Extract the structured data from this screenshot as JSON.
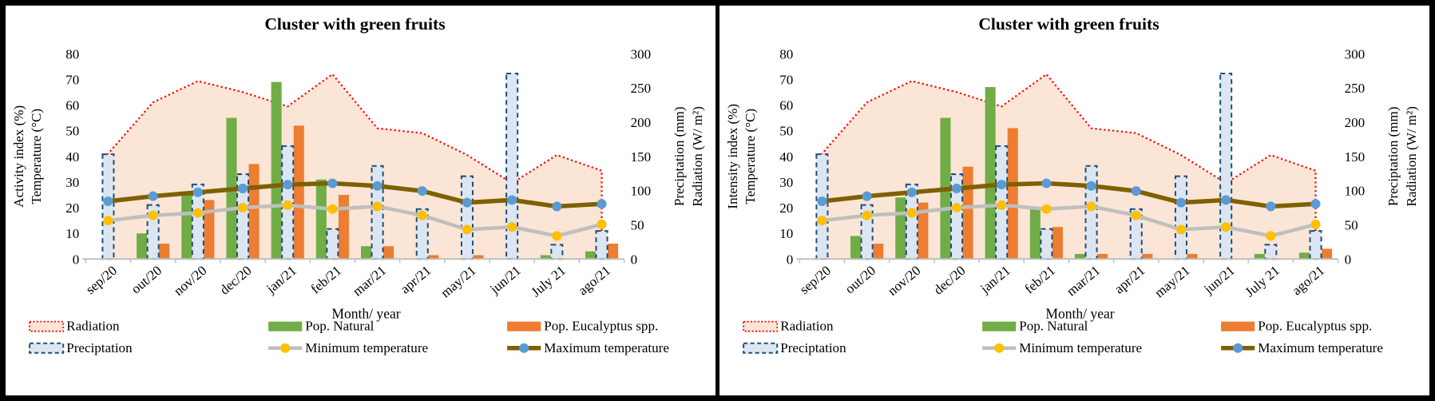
{
  "figure": {
    "background": "#FFFFFF",
    "frame_color": "#000000"
  },
  "axes": {
    "y_left_ticks": [
      80,
      70,
      60,
      50,
      40,
      30,
      20,
      10,
      0
    ],
    "y_right_ticks": [
      300,
      250,
      200,
      150,
      100,
      50,
      0
    ]
  },
  "chart_data": [
    {
      "type": "combo-area-bar-line",
      "title": "Cluster with green fruits",
      "xlabel": "Month/ year",
      "ylabel_left": [
        "Activity index (%)",
        "Temperature (°C)"
      ],
      "ylabel_right": [
        "Preciptation (mm)",
        "Radiation (W/ m²)"
      ],
      "ylim_left": [
        0,
        80
      ],
      "ylim_right": [
        0,
        300
      ],
      "grid": false,
      "legend_position": "bottom",
      "categories": [
        "sep/20",
        "out/20",
        "nov/20",
        "dec/20",
        "jan/21",
        "feb/21",
        "mar/21",
        "apr/21",
        "may/21",
        "jun/21",
        "July 21",
        "ago/21"
      ],
      "series": [
        {
          "name": "Radiation",
          "type": "area",
          "axis": "right",
          "unit": "W/m²",
          "fill": "#FBE5D6",
          "stroke": "#FF0000",
          "values": [
            154,
            229,
            260,
            244,
            223,
            270,
            191,
            184,
            152,
            111,
            152,
            129
          ]
        },
        {
          "name": "Preciptation",
          "type": "bar",
          "axis": "right",
          "unit": "mm",
          "fill": "#DCE6F2",
          "stroke": "#1F4E79",
          "values": [
            153,
            79,
            109,
            124,
            165,
            44,
            136,
            73,
            121,
            271,
            21,
            41
          ]
        },
        {
          "name": "Pop. Natural",
          "type": "bar",
          "axis": "left",
          "unit": "%",
          "fill": "#70AD47",
          "values": [
            0,
            10,
            25,
            55,
            69,
            31,
            5,
            0,
            0,
            0,
            1.5,
            3
          ]
        },
        {
          "name": "Pop. Eucalyptus spp.",
          "type": "bar",
          "axis": "left",
          "unit": "%",
          "fill": "#ED7D31",
          "values": [
            0,
            6,
            23,
            37,
            52,
            25,
            5,
            1.5,
            1.5,
            0,
            0,
            6
          ]
        },
        {
          "name": "Minimum temperature",
          "type": "line",
          "axis": "left",
          "unit": "°C",
          "stroke": "#BFBFBF",
          "marker": "#FFC000",
          "values": [
            15,
            17,
            18,
            20,
            21,
            19.5,
            20.5,
            17,
            11.5,
            12.5,
            9,
            13.5
          ]
        },
        {
          "name": "Maximum temperature",
          "type": "line",
          "axis": "left",
          "unit": "°C",
          "stroke": "#7F6000",
          "marker": "#5B9BD5",
          "values": [
            22.5,
            24.5,
            26,
            27.5,
            29,
            29.5,
            28.5,
            26.5,
            22,
            23,
            20.5,
            21.5
          ]
        }
      ]
    },
    {
      "type": "combo-area-bar-line",
      "title": "Cluster with green fruits",
      "xlabel": "Month/ year",
      "ylabel_left": [
        "Intensity index (%)",
        "Temperature (°C)"
      ],
      "ylabel_right": [
        "Preciptation (mm)",
        "Radiation (W/ m²)"
      ],
      "ylim_left": [
        0,
        80
      ],
      "ylim_right": [
        0,
        300
      ],
      "grid": false,
      "legend_position": "bottom",
      "categories": [
        "sep/20",
        "out/20",
        "nov/20",
        "dec/20",
        "jan/21",
        "feb/21",
        "mar/21",
        "apr/21",
        "may/21",
        "jun/21",
        "July 21",
        "ago/21"
      ],
      "series": [
        {
          "name": "Radiation",
          "type": "area",
          "axis": "right",
          "unit": "W/m²",
          "fill": "#FBE5D6",
          "stroke": "#FF0000",
          "values": [
            154,
            229,
            260,
            244,
            223,
            270,
            191,
            184,
            152,
            111,
            152,
            129
          ]
        },
        {
          "name": "Preciptation",
          "type": "bar",
          "axis": "right",
          "unit": "mm",
          "fill": "#DCE6F2",
          "stroke": "#1F4E79",
          "values": [
            153,
            79,
            109,
            124,
            165,
            44,
            136,
            73,
            121,
            271,
            21,
            41
          ]
        },
        {
          "name": "Pop. Natural",
          "type": "bar",
          "axis": "left",
          "unit": "%",
          "fill": "#70AD47",
          "values": [
            0,
            9,
            24,
            55,
            67,
            20,
            2,
            0,
            0,
            0,
            2,
            2.5
          ]
        },
        {
          "name": "Pop. Eucalyptus spp.",
          "type": "bar",
          "axis": "left",
          "unit": "%",
          "fill": "#ED7D31",
          "values": [
            0,
            6,
            22,
            36,
            51,
            12.5,
            2,
            2,
            2,
            0,
            0,
            4
          ]
        },
        {
          "name": "Minimum temperature",
          "type": "line",
          "axis": "left",
          "unit": "°C",
          "stroke": "#BFBFBF",
          "marker": "#FFC000",
          "values": [
            15,
            17,
            18,
            20,
            21,
            19.5,
            20.5,
            17,
            11.5,
            12.5,
            9,
            13.5
          ]
        },
        {
          "name": "Maximum temperature",
          "type": "line",
          "axis": "left",
          "unit": "°C",
          "stroke": "#7F6000",
          "marker": "#5B9BD5",
          "values": [
            22.5,
            24.5,
            26,
            27.5,
            29,
            29.5,
            28.5,
            26.5,
            22,
            23,
            20.5,
            21.5
          ]
        }
      ]
    }
  ]
}
